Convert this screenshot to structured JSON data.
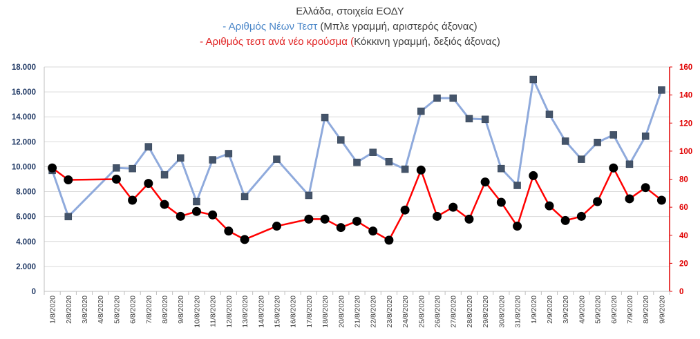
{
  "title": {
    "line1": "Ελλάδα, στοιχεία ΕΟΔΥ",
    "line2_dash": "- ",
    "line2_colored": "Αριθμός Νέων Τεστ",
    "line2_rest": " (Μπλε γραμμή, αριστερός άξονας)",
    "line3_dash": "- ",
    "line3_colored": "Αριθμός τεστ ανά νέο κρούσμα (",
    "line3_rest": "Κόκκινη γραμμή, δεξιός άξονας)"
  },
  "colors": {
    "blue_line": "#8faadc",
    "blue_marker": "#44546a",
    "red_line": "#ff0000",
    "red_marker": "#000000",
    "left_axis_text": "#1f3864",
    "right_axis_text": "#e00000",
    "title_text": "#404040"
  },
  "chart_data": {
    "type": "line",
    "title": "Ελλάδα, στοιχεία ΕΟΔΥ",
    "categories": [
      "1/8/2020",
      "2/8/2020",
      "3/8/2020",
      "4/8/2020",
      "5/8/2020",
      "6/8/2020",
      "7/8/2020",
      "8/8/2020",
      "9/8/2020",
      "10/8/2020",
      "11/8/2020",
      "12/8/2020",
      "13/8/2020",
      "14/8/2020",
      "15/8/2020",
      "16/8/2020",
      "17/8/2020",
      "18/8/2020",
      "20/8/2020",
      "21/8/2020",
      "22/8/2020",
      "23/8/2020",
      "24/8/2020",
      "25/8/2020",
      "26/8/2020",
      "27/8/2020",
      "28/8/2020",
      "29/8/2020",
      "30/8/2020",
      "31/8/2020",
      "1/9/2020",
      "2/9/2020",
      "3/9/2020",
      "4/9/2020",
      "5/9/2020",
      "6/9/2020",
      "7/9/2020",
      "8/9/2020",
      "9/9/2020"
    ],
    "series": [
      {
        "axis": "left",
        "marker": "square",
        "values": [
          9700,
          6000,
          null,
          null,
          9900,
          9850,
          11600,
          9350,
          10700,
          7200,
          10550,
          11050,
          7600,
          null,
          10600,
          null,
          7700,
          13950,
          12150,
          10350,
          11150,
          10400,
          9800,
          14450,
          15500,
          15500,
          13850,
          13800,
          9850,
          8500,
          17000,
          14200,
          12050,
          10600,
          11950,
          12550,
          10200,
          12450,
          16150
        ]
      },
      {
        "axis": "right",
        "marker": "circle",
        "values": [
          88,
          79.5,
          null,
          null,
          80,
          65,
          77,
          62,
          53.5,
          57,
          54.5,
          43,
          37,
          null,
          46.5,
          null,
          51.5,
          51.5,
          45.5,
          50,
          43,
          36.5,
          58,
          86.5,
          53.5,
          60,
          51.5,
          78,
          63.5,
          46.5,
          82.5,
          61,
          50.5,
          53.5,
          64,
          88,
          66,
          74,
          65
        ]
      }
    ],
    "y_left": {
      "min": 0,
      "max": 18000,
      "step": 2000,
      "tick_labels": [
        "0",
        "2.000",
        "4.000",
        "6.000",
        "8.000",
        "10.000",
        "12.000",
        "14.000",
        "16.000",
        "18.000"
      ]
    },
    "y_right": {
      "min": 0,
      "max": 160,
      "step": 20,
      "tick_labels": [
        "0",
        "20",
        "40",
        "60",
        "80",
        "100",
        "120",
        "140",
        "160"
      ]
    },
    "x_labels": [
      "1/8/2020",
      "2/8/2020",
      "3/8/2020",
      "4/8/2020",
      "5/8/2020",
      "6/8/2020",
      "7/8/2020",
      "8/8/2020",
      "9/8/2020",
      "10/8/2020",
      "11/8/2020",
      "12/8/2020",
      "13/8/2020",
      "14/8/2020",
      "15/8/2020",
      "16/8/2020",
      "17/8/2020",
      "18/8/2020",
      "20/8/2020",
      "21/8/2020",
      "22/8/2020",
      "23/8/2020",
      "24/8/2020",
      "25/8/2020",
      "26/8/2020",
      "27/8/2020",
      "28/8/2020",
      "29/8/2020",
      "30/8/2020",
      "31/8/2020",
      "1/9/2020",
      "2/9/2020",
      "3/9/2020",
      "4/9/2020",
      "5/9/2020",
      "6/9/2020",
      "7/9/2020",
      "8/9/2020",
      "9/9/2020"
    ],
    "grid": true,
    "legend": "none"
  }
}
